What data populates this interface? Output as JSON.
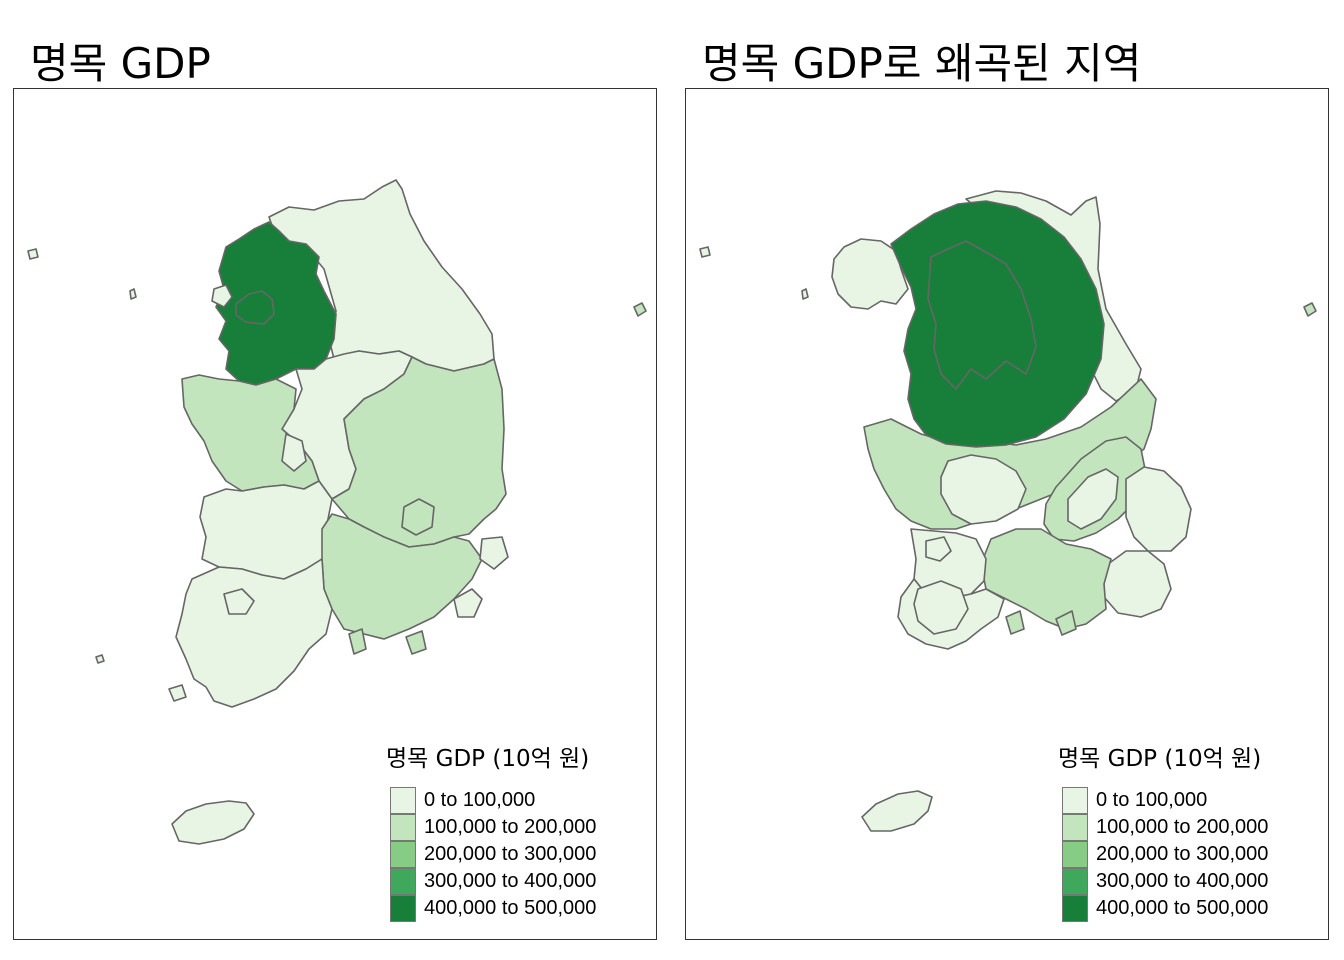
{
  "panels": [
    {
      "title": "명목 GDP",
      "legend_title": "명목 GDP (10억 원)"
    },
    {
      "title": "명목 GDP로 왜곡된 지역",
      "legend_title": "명목 GDP (10억 원)"
    }
  ],
  "legend": {
    "classes": [
      {
        "label": "0 to 100,000",
        "color": "#e8f5e4"
      },
      {
        "label": "100,000 to 200,000",
        "color": "#c3e5bd"
      },
      {
        "label": "200,000 to 300,000",
        "color": "#86cc85"
      },
      {
        "label": "300,000 to 400,000",
        "color": "#3fa85b"
      },
      {
        "label": "400,000 to 500,000",
        "color": "#177f3a"
      }
    ]
  },
  "colors": {
    "border": "#666666",
    "class_1": "#e8f5e4",
    "class_2": "#c3e5bd",
    "class_3": "#86cc85",
    "class_4": "#3fa85b",
    "class_5": "#177f3a"
  }
}
